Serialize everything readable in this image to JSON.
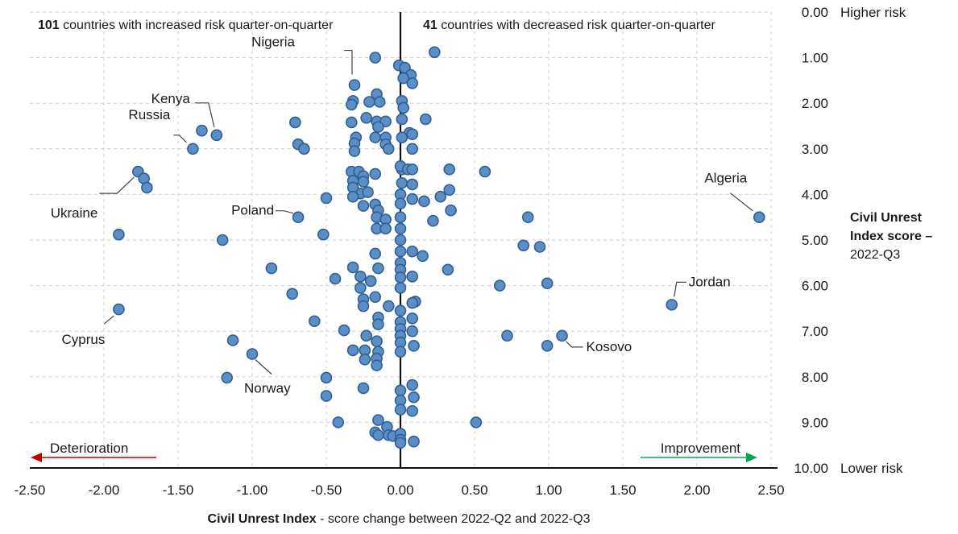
{
  "chart_data": {
    "type": "scatter",
    "xlabel_bold": "Civil Unrest Index",
    "xlabel_rest": " - score change between 2022-Q2 and 2022-Q3",
    "ylabel_line1": "Civil Unrest",
    "ylabel_line2": "Index score –",
    "ylabel_line3": "2022-Q3",
    "xlim": [
      -2.5,
      2.5
    ],
    "ylim": [
      0,
      10
    ],
    "y_inverted": true,
    "x_ticks": [
      "-2.50",
      "-2.00",
      "-1.50",
      "-1.00",
      "-0.50",
      "0.00",
      "0.50",
      "1.00",
      "1.50",
      "2.00",
      "2.50"
    ],
    "y_ticks": [
      "0.00",
      "1.00",
      "2.00",
      "3.00",
      "4.00",
      "5.00",
      "6.00",
      "7.00",
      "8.00",
      "9.00",
      "10.00"
    ],
    "y_top_label": "Higher risk",
    "y_bottom_label": "Lower risk",
    "left_note": {
      "count": "101",
      "text": " countries with increased risk quarter-on-quarter"
    },
    "right_note": {
      "count": "41",
      "text": " countries with decreased risk quarter-on-quarter"
    },
    "arrow_left_label": "Deterioration",
    "arrow_right_label": "Improvement",
    "arrow_left_color": "#c00000",
    "arrow_right_color": "#00a550",
    "point_color": "#5b8ec4",
    "labeled_points": [
      {
        "name": "Nigeria",
        "x": -0.31,
        "y": 1.6
      },
      {
        "name": "Kenya",
        "x": -1.24,
        "y": 2.7
      },
      {
        "name": "Russia",
        "x": -1.4,
        "y": 3.0
      },
      {
        "name": "Ukraine",
        "x": -1.77,
        "y": 3.5
      },
      {
        "name": "Poland",
        "x": -0.69,
        "y": 4.5
      },
      {
        "name": "Algeria",
        "x": 2.42,
        "y": 4.5
      },
      {
        "name": "Jordan",
        "x": 1.83,
        "y": 6.42
      },
      {
        "name": "Cyprus",
        "x": -1.9,
        "y": 6.52
      },
      {
        "name": "Kosovo",
        "x": 1.09,
        "y": 7.1
      },
      {
        "name": "Norway",
        "x": -1.0,
        "y": 7.5
      }
    ],
    "points": [
      [
        -0.17,
        1.0
      ],
      [
        0.23,
        0.88
      ],
      [
        -0.01,
        1.17
      ],
      [
        0.03,
        1.22
      ],
      [
        0.07,
        1.38
      ],
      [
        0.02,
        1.45
      ],
      [
        0.08,
        1.56
      ],
      [
        -0.31,
        1.6
      ],
      [
        -0.16,
        1.8
      ],
      [
        -0.32,
        1.95
      ],
      [
        -0.21,
        1.97
      ],
      [
        -0.14,
        1.97
      ],
      [
        -0.33,
        2.03
      ],
      [
        0.01,
        1.95
      ],
      [
        0.02,
        2.1
      ],
      [
        -0.71,
        2.42
      ],
      [
        -0.33,
        2.42
      ],
      [
        -0.23,
        2.32
      ],
      [
        -0.16,
        2.4
      ],
      [
        -0.1,
        2.4
      ],
      [
        -0.15,
        2.52
      ],
      [
        0.01,
        2.35
      ],
      [
        0.17,
        2.35
      ],
      [
        0.06,
        2.65
      ],
      [
        0.08,
        2.68
      ],
      [
        -0.3,
        2.75
      ],
      [
        -0.17,
        2.75
      ],
      [
        -0.1,
        2.75
      ],
      [
        0.01,
        2.75
      ],
      [
        -1.34,
        2.6
      ],
      [
        -1.24,
        2.7
      ],
      [
        -1.4,
        3.0
      ],
      [
        -0.31,
        2.88
      ],
      [
        -0.69,
        2.9
      ],
      [
        -0.65,
        3.0
      ],
      [
        -0.31,
        3.05
      ],
      [
        -0.1,
        2.9
      ],
      [
        -0.08,
        3.0
      ],
      [
        0.08,
        3.0
      ],
      [
        0.01,
        3.45
      ],
      [
        -1.77,
        3.5
      ],
      [
        -1.73,
        3.65
      ],
      [
        -1.71,
        3.85
      ],
      [
        -0.33,
        3.5
      ],
      [
        -0.28,
        3.5
      ],
      [
        -0.25,
        3.6
      ],
      [
        -0.25,
        3.72
      ],
      [
        -0.27,
        3.98
      ],
      [
        -0.22,
        3.95
      ],
      [
        -0.32,
        3.7
      ],
      [
        -0.32,
        3.85
      ],
      [
        -0.32,
        4.05
      ],
      [
        -0.17,
        3.55
      ],
      [
        0.0,
        3.38
      ],
      [
        0.05,
        3.45
      ],
      [
        0.08,
        3.45
      ],
      [
        0.33,
        3.45
      ],
      [
        0.57,
        3.5
      ],
      [
        -0.5,
        4.08
      ],
      [
        -0.25,
        4.25
      ],
      [
        -0.17,
        4.22
      ],
      [
        -0.15,
        4.35
      ],
      [
        -0.16,
        4.5
      ],
      [
        -0.1,
        4.55
      ],
      [
        -0.16,
        4.75
      ],
      [
        -0.1,
        4.75
      ],
      [
        0.0,
        4.0
      ],
      [
        0.0,
        4.2
      ],
      [
        0.0,
        4.5
      ],
      [
        0.0,
        4.75
      ],
      [
        0.08,
        4.1
      ],
      [
        0.16,
        4.15
      ],
      [
        0.27,
        4.05
      ],
      [
        0.33,
        3.9
      ],
      [
        0.34,
        4.35
      ],
      [
        0.22,
        4.58
      ],
      [
        0.01,
        3.75
      ],
      [
        0.08,
        3.78
      ],
      [
        -0.69,
        4.5
      ],
      [
        0.86,
        4.5
      ],
      [
        2.42,
        4.5
      ],
      [
        -1.9,
        4.88
      ],
      [
        -1.2,
        5.0
      ],
      [
        -0.52,
        4.88
      ],
      [
        0.0,
        5.0
      ],
      [
        0.0,
        5.25
      ],
      [
        0.0,
        5.5
      ],
      [
        0.0,
        5.65
      ],
      [
        0.08,
        5.25
      ],
      [
        0.15,
        5.35
      ],
      [
        0.83,
        5.12
      ],
      [
        0.94,
        5.15
      ],
      [
        -0.17,
        5.3
      ],
      [
        -0.15,
        5.62
      ],
      [
        -0.87,
        5.62
      ],
      [
        -0.32,
        5.6
      ],
      [
        -0.27,
        5.8
      ],
      [
        -0.44,
        5.85
      ],
      [
        -0.2,
        5.9
      ],
      [
        -0.27,
        6.05
      ],
      [
        0.0,
        5.82
      ],
      [
        0.0,
        6.05
      ],
      [
        0.08,
        5.8
      ],
      [
        0.32,
        5.65
      ],
      [
        0.67,
        6.0
      ],
      [
        0.99,
        5.95
      ],
      [
        -0.73,
        6.18
      ],
      [
        -0.17,
        6.25
      ],
      [
        1.83,
        6.42
      ],
      [
        -1.9,
        6.52
      ],
      [
        -0.25,
        6.3
      ],
      [
        -0.25,
        6.45
      ],
      [
        -0.08,
        6.45
      ],
      [
        -0.15,
        6.7
      ],
      [
        -0.15,
        6.85
      ],
      [
        0.1,
        6.35
      ],
      [
        0.08,
        6.38
      ],
      [
        0.0,
        6.55
      ],
      [
        0.0,
        6.8
      ],
      [
        0.08,
        6.72
      ],
      [
        -0.58,
        6.78
      ],
      [
        -0.38,
        6.98
      ],
      [
        -1.13,
        7.2
      ],
      [
        -0.23,
        7.1
      ],
      [
        -0.16,
        7.22
      ],
      [
        -0.15,
        7.45
      ],
      [
        -0.32,
        7.42
      ],
      [
        -0.24,
        7.42
      ],
      [
        -0.24,
        7.62
      ],
      [
        -0.16,
        7.6
      ],
      [
        -0.16,
        7.75
      ],
      [
        0.0,
        6.95
      ],
      [
        0.0,
        7.1
      ],
      [
        0.0,
        7.25
      ],
      [
        0.0,
        7.45
      ],
      [
        0.08,
        7.0
      ],
      [
        0.09,
        7.32
      ],
      [
        0.72,
        7.1
      ],
      [
        1.09,
        7.1
      ],
      [
        0.99,
        7.32
      ],
      [
        -1.0,
        7.5
      ],
      [
        -1.17,
        8.02
      ],
      [
        -0.5,
        8.02
      ],
      [
        -0.5,
        8.42
      ],
      [
        -0.25,
        8.25
      ],
      [
        0.0,
        8.3
      ],
      [
        0.0,
        8.52
      ],
      [
        0.0,
        8.72
      ],
      [
        0.08,
        8.18
      ],
      [
        0.09,
        8.45
      ],
      [
        0.08,
        8.75
      ],
      [
        -0.42,
        9.0
      ],
      [
        -0.15,
        8.95
      ],
      [
        -0.09,
        9.1
      ],
      [
        -0.17,
        9.22
      ],
      [
        -0.15,
        9.28
      ],
      [
        -0.08,
        9.28
      ],
      [
        -0.05,
        9.3
      ],
      [
        0.0,
        9.25
      ],
      [
        0.0,
        9.38
      ],
      [
        0.0,
        9.45
      ],
      [
        0.09,
        9.42
      ],
      [
        0.51,
        9.0
      ]
    ]
  }
}
